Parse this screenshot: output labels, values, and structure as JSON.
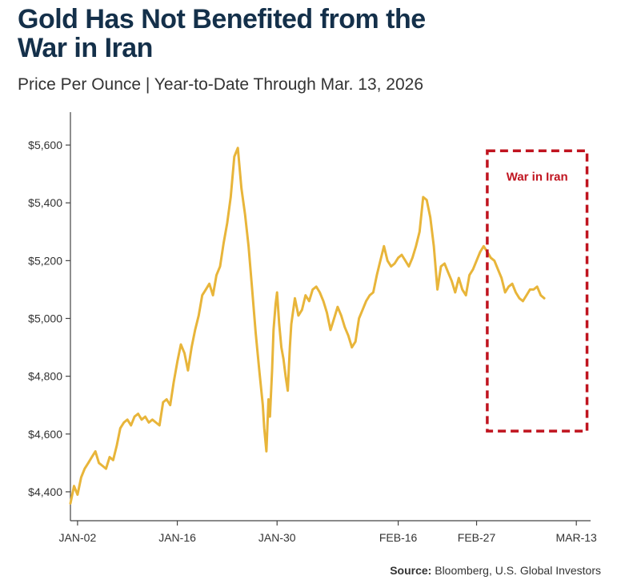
{
  "header": {
    "title_line1": "Gold Has Not Benefited from the",
    "title_line2": "War in Iran",
    "subtitle": "Price Per Ounce | Year-to-Date Through Mar. 13, 2026"
  },
  "source": {
    "label": "Source:",
    "text": "Bloomberg, U.S. Global Investors"
  },
  "colors": {
    "line": "#e8b53a",
    "annotation": "#c0141f",
    "axis": "#444444",
    "title": "#14304a"
  },
  "chart_data": {
    "type": "line",
    "title": "Gold Has Not Benefited from the War in Iran",
    "subtitle": "Price Per Ounce | Year-to-Date Through Mar. 13, 2026",
    "xlabel": "",
    "ylabel": "",
    "ylim": [
      4300,
      5700
    ],
    "yticks": [
      4400,
      4600,
      4800,
      5000,
      5200,
      5400,
      5600
    ],
    "ytick_labels": [
      "$4,400",
      "$4,600",
      "$4,800",
      "$5,000",
      "$5,200",
      "$5,400",
      "$5,600"
    ],
    "xticks": [
      {
        "day": 2,
        "label": "JAN-02"
      },
      {
        "day": 16,
        "label": "JAN-16"
      },
      {
        "day": 30,
        "label": "JAN-30"
      },
      {
        "day": 47,
        "label": "FEB-16"
      },
      {
        "day": 58,
        "label": "FEB-27"
      },
      {
        "day": 72,
        "label": "MAR-13"
      }
    ],
    "grid": false,
    "series": [
      {
        "name": "",
        "x_day_of_year": [
          1,
          1.5,
          2,
          2.5,
          3,
          3.5,
          4,
          4.5,
          5,
          5.5,
          6,
          6.5,
          7,
          7.5,
          8,
          8.5,
          9,
          9.5,
          10,
          10.5,
          11,
          11.5,
          12,
          12.5,
          13,
          13.5,
          14,
          14.5,
          15,
          15.5,
          16,
          16.5,
          17,
          17.5,
          18,
          18.5,
          19,
          19.5,
          20,
          20.5,
          21,
          21.5,
          22,
          22.5,
          23,
          23.5,
          24,
          24.5,
          25,
          25.5,
          26,
          26.5,
          27,
          27.5,
          28,
          28.2,
          28.5,
          28.8,
          29,
          29.3,
          29.5,
          29.8,
          30,
          30.3,
          30.6,
          30.9,
          31.2,
          31.5,
          31.8,
          32,
          32.5,
          33,
          33.5,
          34,
          34.5,
          35,
          35.5,
          36,
          36.5,
          37,
          37.5,
          38,
          38.5,
          39,
          39.5,
          40,
          40.5,
          41,
          41.5,
          42,
          42.5,
          43,
          43.5,
          44,
          44.5,
          45,
          45.5,
          46,
          46.5,
          47,
          47.5,
          48,
          48.5,
          49,
          49.5,
          50,
          50.5,
          51,
          51.5,
          52,
          52.5,
          53,
          53.5,
          54,
          54.5,
          55,
          55.5,
          56,
          56.5,
          57,
          57.5,
          58,
          58.5,
          59,
          59.5,
          60,
          60.5,
          61,
          61.5,
          62,
          62.5,
          63,
          63.5,
          64,
          64.5,
          65,
          65.5,
          66,
          66.5,
          67,
          67.5,
          68,
          68.5,
          69,
          69.5,
          70,
          70.5,
          71,
          71.5,
          72,
          72.5,
          73
        ],
        "values": [
          4360,
          4420,
          4390,
          4450,
          4480,
          4500,
          4520,
          4540,
          4500,
          4490,
          4480,
          4520,
          4510,
          4560,
          4620,
          4640,
          4650,
          4630,
          4660,
          4670,
          4650,
          4660,
          4640,
          4650,
          4640,
          4630,
          4710,
          4720,
          4700,
          4780,
          4850,
          4910,
          4880,
          4820,
          4900,
          4960,
          5010,
          5080,
          5100,
          5120,
          5080,
          5150,
          5180,
          5260,
          5330,
          5420,
          5560,
          5590,
          5450,
          5360,
          5250,
          5100,
          4950,
          4820,
          4700,
          4620,
          4540,
          4720,
          4660,
          4820,
          4960,
          5050,
          5090,
          4980,
          4900,
          4860,
          4800,
          4750,
          4900,
          4980,
          5070,
          5010,
          5030,
          5080,
          5060,
          5100,
          5110,
          5090,
          5060,
          5020,
          4960,
          5000,
          5040,
          5010,
          4970,
          4940,
          4900,
          4920,
          5000,
          5030,
          5060,
          5080,
          5090,
          5150,
          5200,
          5250,
          5200,
          5180,
          5190,
          5210,
          5220,
          5200,
          5180,
          5210,
          5250,
          5300,
          5420,
          5410,
          5350,
          5250,
          5100,
          5180,
          5190,
          5160,
          5130,
          5090,
          5140,
          5100,
          5080,
          5150,
          5170,
          5200,
          5230,
          5250,
          5230,
          5210,
          5200,
          5170,
          5140,
          5090,
          5110,
          5120,
          5090,
          5070,
          5060,
          5080,
          5100,
          5100,
          5110,
          5080,
          5070
        ]
      }
    ],
    "annotations": [
      {
        "label": "War in Iran",
        "x_start_day": 59.5,
        "x_end_day": 73.5,
        "y_low": 4610,
        "y_high": 5580,
        "style": "dashed-box"
      }
    ]
  }
}
